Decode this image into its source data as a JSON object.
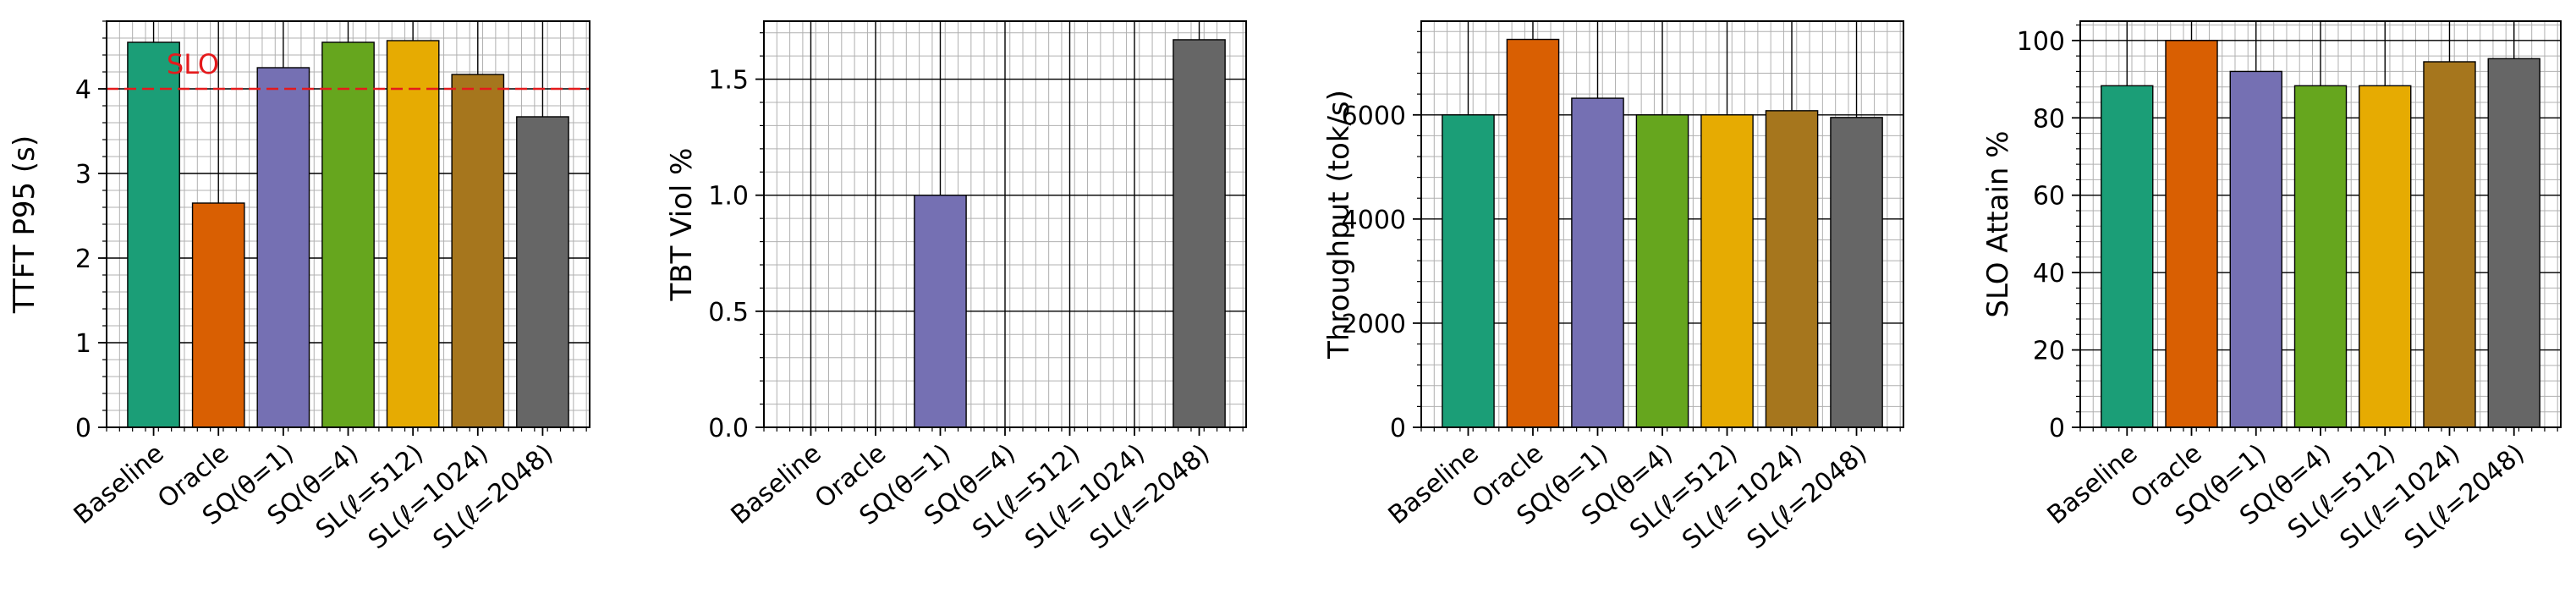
{
  "chart_data": [
    {
      "type": "bar",
      "categories": [
        "Baseline",
        "Oracle",
        "SQ(θ=1)",
        "SQ(θ=4)",
        "SL(ℓ=512)",
        "SL(ℓ=1024)",
        "SL(ℓ=2048)"
      ],
      "values": [
        4.55,
        2.65,
        4.25,
        4.55,
        4.57,
        4.17,
        3.67
      ],
      "title": "",
      "xlabel": "",
      "ylabel": "TTFT P95 (s)",
      "ylim": [
        0,
        4.8
      ],
      "yticks": [
        0,
        1,
        2,
        3,
        4
      ],
      "yminor_step": 0.2,
      "grid": true,
      "reference_line": {
        "value": 4.0,
        "label": "SLO",
        "color": "#e41a1c",
        "style": "dashed"
      }
    },
    {
      "type": "bar",
      "categories": [
        "Baseline",
        "Oracle",
        "SQ(θ=1)",
        "SQ(θ=4)",
        "SL(ℓ=512)",
        "SL(ℓ=1024)",
        "SL(ℓ=2048)"
      ],
      "values": [
        0,
        0,
        1.0,
        0,
        0,
        0,
        1.67
      ],
      "title": "",
      "xlabel": "",
      "ylabel": "TBT Viol %",
      "ylim": [
        0,
        1.75
      ],
      "yticks": [
        0.0,
        0.5,
        1.0,
        1.5
      ],
      "ytick_decimals": 1,
      "yminor_step": 0.1,
      "grid": true
    },
    {
      "type": "bar",
      "categories": [
        "Baseline",
        "Oracle",
        "SQ(θ=1)",
        "SQ(θ=4)",
        "SL(ℓ=512)",
        "SL(ℓ=1024)",
        "SL(ℓ=2048)"
      ],
      "values": [
        6000,
        7450,
        6320,
        6000,
        6000,
        6080,
        5950
      ],
      "title": "",
      "xlabel": "",
      "ylabel": "Throughput (tok/s)",
      "ylim": [
        0,
        7800
      ],
      "yticks": [
        0,
        2000,
        4000,
        6000
      ],
      "yminor_step": 400,
      "grid": true
    },
    {
      "type": "bar",
      "categories": [
        "Baseline",
        "Oracle",
        "SQ(θ=1)",
        "SQ(θ=4)",
        "SL(ℓ=512)",
        "SL(ℓ=1024)",
        "SL(ℓ=2048)"
      ],
      "values": [
        88.3,
        100,
        92,
        88.3,
        88.3,
        94.5,
        95.3
      ],
      "title": "",
      "xlabel": "",
      "ylabel": "SLO Attain %",
      "ylim": [
        0,
        105
      ],
      "yticks": [
        0,
        20,
        40,
        60,
        80,
        100
      ],
      "yminor_step": 4,
      "grid": true
    }
  ],
  "colors": {
    "bars": [
      "#1b9e77",
      "#d95f02",
      "#7570b3",
      "#66a61e",
      "#e6ab02",
      "#a6761d",
      "#666666"
    ],
    "slo_line": "#e41a1c",
    "major_grid": "#000000",
    "minor_grid": "#b0b0b0"
  }
}
